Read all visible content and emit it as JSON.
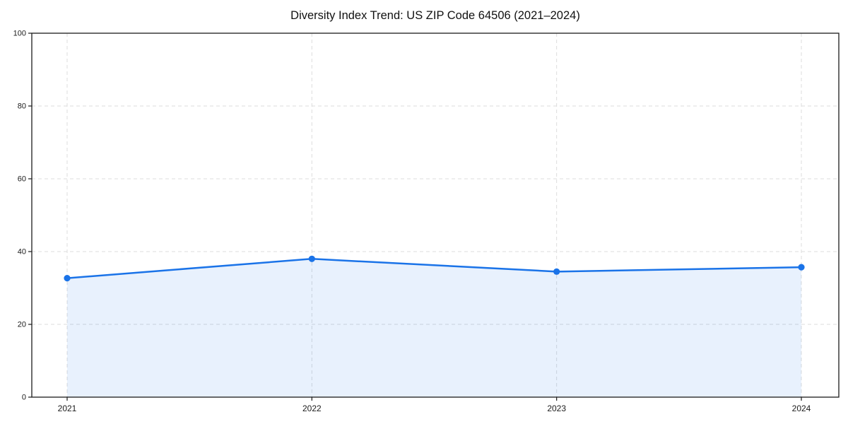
{
  "chart_data": {
    "type": "area",
    "title": "Diversity Index Trend: US ZIP Code 64506 (2021–2024)",
    "categories": [
      "2021",
      "2022",
      "2023",
      "2024"
    ],
    "series": [
      {
        "name": "Diversity Index",
        "values": [
          32.7,
          38.0,
          34.5,
          35.7
        ]
      }
    ],
    "xlabel": "",
    "ylabel": "",
    "ylim": [
      0,
      100
    ],
    "yticks": [
      0,
      20,
      40,
      60,
      80,
      100
    ],
    "grid": true,
    "grid_style": "dashed",
    "legend_position": "none",
    "colors": {
      "line": "#1a73e8",
      "marker": "#1a73e8",
      "fill": "#1a73e8",
      "fill_opacity": 0.1,
      "gridline": "#dcdcdc",
      "spine": "#1b1b1b",
      "text": "#1b1b1b"
    },
    "marker": "circle",
    "marker_radius": 4.6
  }
}
